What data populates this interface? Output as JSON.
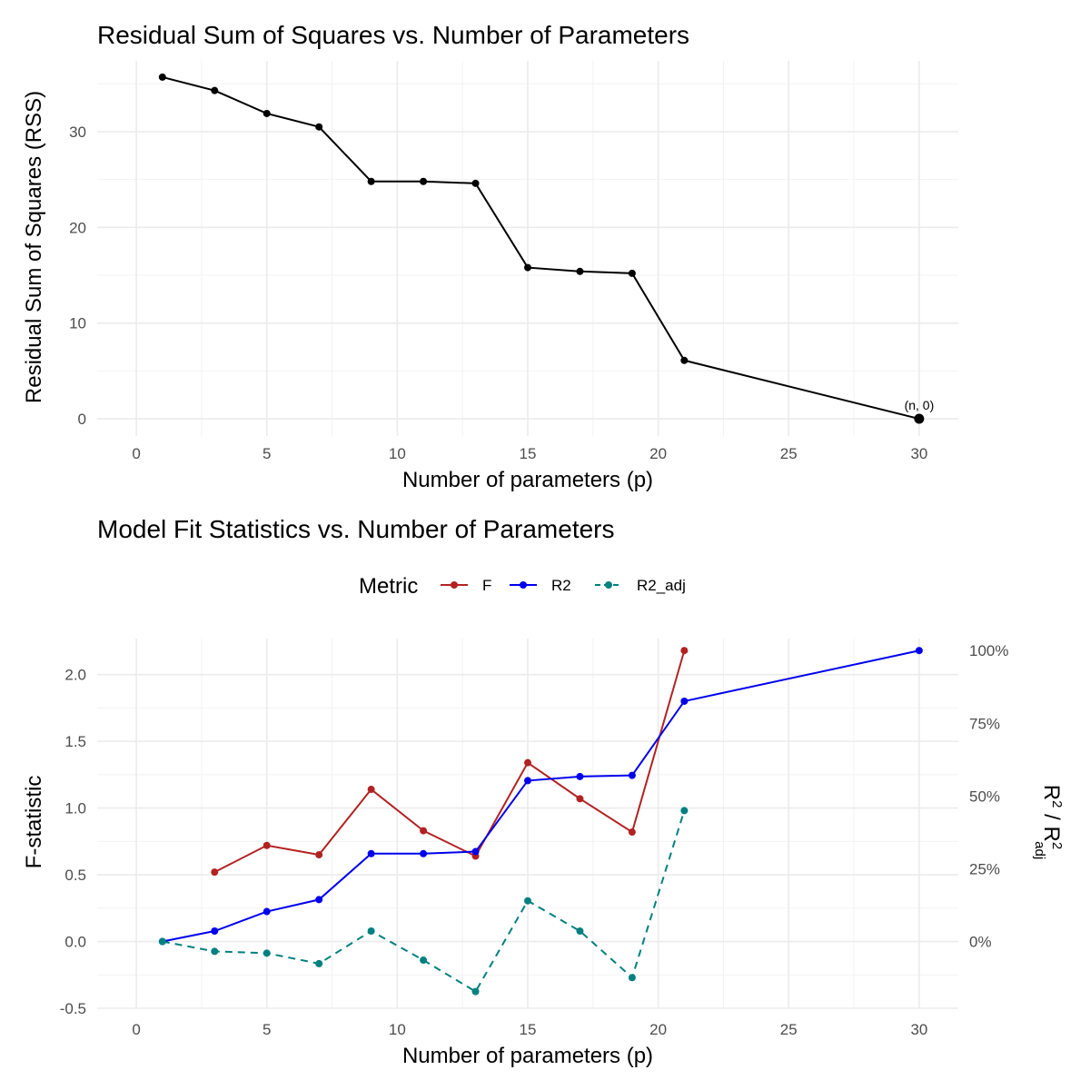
{
  "chart_data": [
    {
      "type": "line",
      "title": "Residual Sum of Squares vs. Number of Parameters",
      "xlabel": "Number of parameters (p)",
      "ylabel": "Residual Sum of Squares (RSS)",
      "xlim": [
        -1.5,
        31.5
      ],
      "ylim": [
        -1.8,
        37.4
      ],
      "xticks": [
        0,
        5,
        10,
        15,
        20,
        25,
        30
      ],
      "yticks": [
        0,
        10,
        20,
        30
      ],
      "grid": true,
      "x": [
        1,
        3,
        5,
        7,
        9,
        11,
        13,
        15,
        17,
        19,
        21,
        30
      ],
      "values": [
        35.7,
        34.3,
        31.9,
        30.5,
        24.8,
        24.8,
        24.6,
        15.8,
        15.4,
        15.2,
        6.1,
        0
      ],
      "color": "#000000",
      "annotation": {
        "text": "(n, 0)",
        "x": 30,
        "y": 0
      }
    },
    {
      "type": "line",
      "title": "Model Fit Statistics vs. Number of Parameters",
      "xlabel": "Number of parameters (p)",
      "ylabel": "F-statistic",
      "ylabel_right": "R² / R²adj",
      "ylabel_right_parts": {
        "base1": "R",
        "sup1": "2",
        "sep": " / R",
        "sup2": "2",
        "sub2": "adj"
      },
      "xlim": [
        -1.5,
        31.5
      ],
      "ylim": [
        -0.5,
        2.27
      ],
      "xticks": [
        0,
        5,
        10,
        15,
        20,
        25,
        30
      ],
      "yticks": [
        -0.5,
        0.0,
        0.5,
        1.0,
        1.5,
        2.0
      ],
      "ytick_labels": [
        "-0.5",
        "0.0",
        "0.5",
        "1.0",
        "1.5",
        "2.0"
      ],
      "right_axis": {
        "ticks": [
          0,
          0.25,
          0.5,
          0.75,
          1.0
        ],
        "labels": [
          "0%",
          "25%",
          "50%",
          "75%",
          "100%"
        ],
        "zero_at": 0.0,
        "one_at": 2.18
      },
      "grid": true,
      "legend": {
        "title": "Metric",
        "position": "top"
      },
      "series": [
        {
          "name": "F",
          "color": "#b22222",
          "dash": false,
          "axis": "left",
          "x": [
            3,
            5,
            7,
            9,
            11,
            13,
            15,
            17,
            19,
            21
          ],
          "values": [
            0.52,
            0.72,
            0.65,
            1.14,
            0.83,
            0.64,
            1.34,
            1.07,
            0.82,
            2.18
          ]
        },
        {
          "name": "R2",
          "color": "#0000ee",
          "dash": false,
          "axis": "right",
          "x": [
            1,
            3,
            5,
            7,
            9,
            11,
            13,
            15,
            17,
            19,
            21,
            30
          ],
          "values": [
            0.0,
            0.036,
            0.103,
            0.144,
            0.302,
            0.302,
            0.309,
            0.553,
            0.567,
            0.571,
            0.826,
            1.0
          ]
        },
        {
          "name": "R2_adj",
          "color": "#008080",
          "dash": true,
          "axis": "right",
          "x": [
            1,
            3,
            5,
            7,
            9,
            11,
            13,
            15,
            17,
            19,
            21
          ],
          "values": [
            0.0,
            -0.034,
            -0.04,
            -0.076,
            0.036,
            -0.064,
            -0.172,
            0.14,
            0.036,
            -0.124,
            0.45
          ]
        }
      ]
    }
  ]
}
